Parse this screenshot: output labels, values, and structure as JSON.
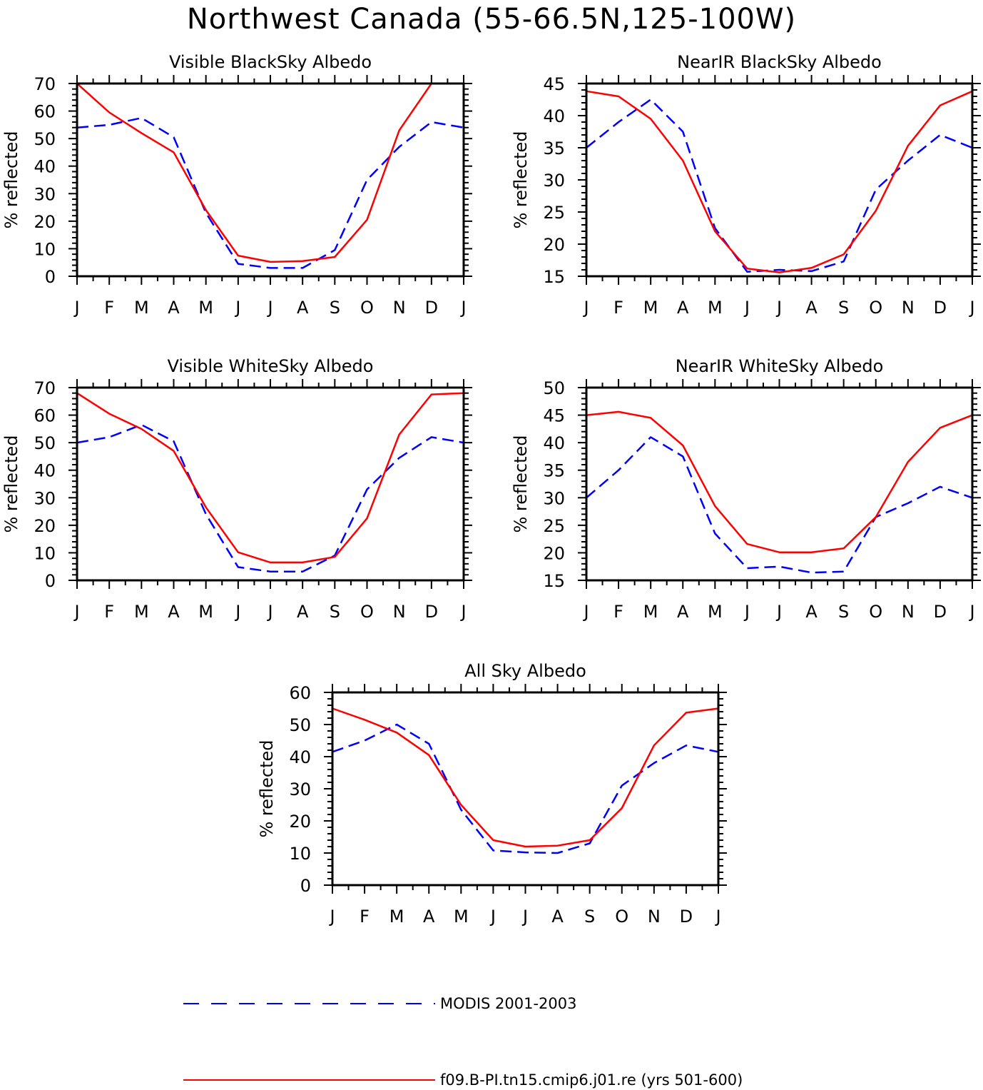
{
  "title": "Northwest Canada (55-66.5N,125-100W)",
  "legend": [
    {
      "label": "MODIS 2001-2003",
      "color": "#0000ff",
      "style": "dashed"
    },
    {
      "label": "f09.B-PI.tn15.cmip6.j01.re (yrs 501-600)",
      "color": "#ff0000",
      "style": "solid"
    }
  ],
  "chart_data": [
    {
      "type": "line",
      "title": "Visible BlackSky Albedo",
      "ylabel": "% reflected",
      "categories": [
        "J",
        "F",
        "M",
        "A",
        "M",
        "J",
        "J",
        "A",
        "S",
        "O",
        "N",
        "D",
        "J"
      ],
      "ylim": [
        0,
        70
      ],
      "yticks": [
        0,
        10,
        20,
        30,
        40,
        50,
        60,
        70
      ],
      "series": [
        {
          "name": "MODIS 2001-2003",
          "color": "#0000ff",
          "dash": true,
          "values": [
            54,
            55,
            57.5,
            50.5,
            23,
            4.5,
            3,
            3,
            9.5,
            35,
            47,
            56,
            54
          ]
        },
        {
          "name": "f09.B-PI.tn15.cmip6.j01.re (yrs 501-600)",
          "color": "#ff0000",
          "dash": false,
          "values": [
            70,
            59.5,
            52,
            45,
            24,
            7.5,
            5.2,
            5.5,
            7,
            20.5,
            53,
            70,
            70
          ]
        }
      ]
    },
    {
      "type": "line",
      "title": "NearIR BlackSky Albedo",
      "ylabel": "% reflected",
      "categories": [
        "J",
        "F",
        "M",
        "A",
        "M",
        "J",
        "J",
        "A",
        "S",
        "O",
        "N",
        "D",
        "J"
      ],
      "ylim": [
        15,
        45
      ],
      "yticks": [
        15,
        20,
        25,
        30,
        35,
        40,
        45
      ],
      "series": [
        {
          "name": "MODIS 2001-2003",
          "color": "#0000ff",
          "dash": true,
          "values": [
            35,
            39,
            42.5,
            37.5,
            22.5,
            15.7,
            16,
            15.8,
            17.3,
            28.5,
            33,
            37,
            35
          ]
        },
        {
          "name": "f09.B-PI.tn15.cmip6.j01.re (yrs 501-600)",
          "color": "#ff0000",
          "dash": false,
          "values": [
            43.8,
            43,
            39.5,
            33,
            22,
            16.2,
            15.6,
            16.3,
            18.4,
            25.2,
            35.3,
            41.6,
            43.8
          ]
        }
      ]
    },
    {
      "type": "line",
      "title": "Visible WhiteSky Albedo",
      "ylabel": "% reflected",
      "categories": [
        "J",
        "F",
        "M",
        "A",
        "M",
        "J",
        "J",
        "A",
        "S",
        "O",
        "N",
        "D",
        "J"
      ],
      "ylim": [
        0,
        70
      ],
      "yticks": [
        0,
        10,
        20,
        30,
        40,
        50,
        60,
        70
      ],
      "series": [
        {
          "name": "MODIS 2001-2003",
          "color": "#0000ff",
          "dash": true,
          "values": [
            50,
            52,
            56.5,
            50.5,
            24,
            4.8,
            3.2,
            3.2,
            9,
            33,
            44.5,
            52,
            50
          ]
        },
        {
          "name": "f09.B-PI.tn15.cmip6.j01.re (yrs 501-600)",
          "color": "#ff0000",
          "dash": false,
          "values": [
            68,
            60.5,
            55,
            47,
            26.5,
            10.2,
            6.5,
            6.5,
            8.5,
            22.5,
            53,
            67.5,
            68
          ]
        }
      ]
    },
    {
      "type": "line",
      "title": "NearIR WhiteSky Albedo",
      "ylabel": "% reflected",
      "categories": [
        "J",
        "F",
        "M",
        "A",
        "M",
        "J",
        "J",
        "A",
        "S",
        "O",
        "N",
        "D",
        "J"
      ],
      "ylim": [
        15,
        50
      ],
      "yticks": [
        15,
        20,
        25,
        30,
        35,
        40,
        45,
        50
      ],
      "series": [
        {
          "name": "MODIS 2001-2003",
          "color": "#0000ff",
          "dash": true,
          "values": [
            30,
            35,
            41,
            37.5,
            23.5,
            17.2,
            17.5,
            16.4,
            16.6,
            26.5,
            29,
            32,
            30
          ]
        },
        {
          "name": "f09.B-PI.tn15.cmip6.j01.re (yrs 501-600)",
          "color": "#ff0000",
          "dash": false,
          "values": [
            45,
            45.6,
            44.5,
            39.5,
            28.5,
            21.6,
            20.1,
            20.1,
            20.8,
            26.5,
            36.5,
            42.7,
            45
          ]
        }
      ]
    },
    {
      "type": "line",
      "title": "All Sky Albedo",
      "ylabel": "% reflected",
      "categories": [
        "J",
        "F",
        "M",
        "A",
        "M",
        "J",
        "J",
        "A",
        "S",
        "O",
        "N",
        "D",
        "J"
      ],
      "ylim": [
        0,
        60
      ],
      "yticks": [
        0,
        10,
        20,
        30,
        40,
        50,
        60
      ],
      "series": [
        {
          "name": "MODIS 2001-2003",
          "color": "#0000ff",
          "dash": true,
          "values": [
            41.5,
            45,
            50,
            44,
            23.5,
            10.8,
            10.2,
            10,
            13,
            31,
            38,
            43.5,
            41.5
          ]
        },
        {
          "name": "f09.B-PI.tn15.cmip6.j01.re (yrs 501-600)",
          "color": "#ff0000",
          "dash": false,
          "values": [
            55,
            51.5,
            47.5,
            40.5,
            25,
            14,
            12,
            12.3,
            14,
            24,
            43.5,
            53.7,
            55
          ]
        }
      ]
    }
  ]
}
